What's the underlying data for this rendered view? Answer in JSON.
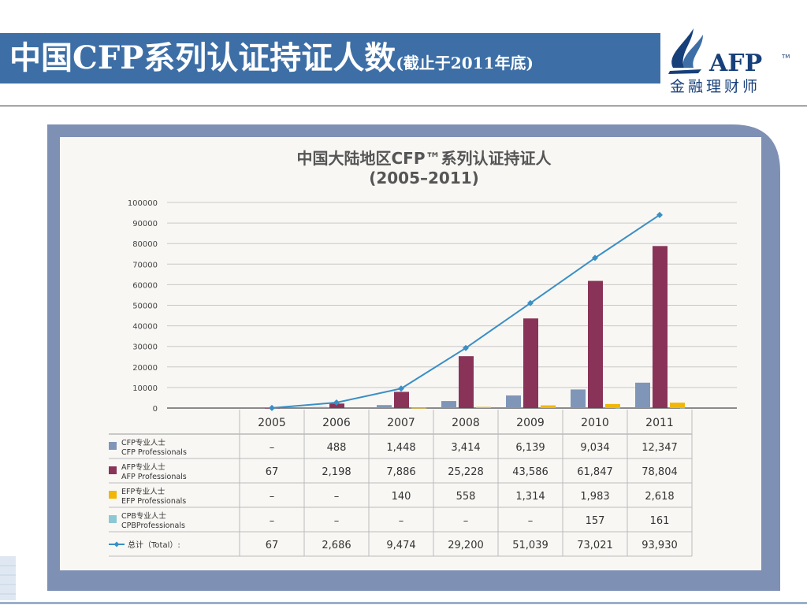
{
  "slide": {
    "title_main": "中国CFP系列认证持证人数",
    "title_sub": "(截止于2011年底)",
    "logo_text": "AFP",
    "logo_tm": "TM",
    "logo_subtitle": "金融理财师"
  },
  "colors": {
    "title_bar": "#3d6fa6",
    "frame": "#7f90b5",
    "cfp": "#8096b8",
    "afp": "#8a3358",
    "efp": "#f2b705",
    "cpb": "#8cc7d4",
    "total": "#3a8fc4"
  },
  "chart_data": {
    "type": "bar",
    "title": "中国大陆地区CFP™系列认证持证人",
    "subtitle": "(2005–2011)",
    "categories": [
      "2005",
      "2006",
      "2007",
      "2008",
      "2009",
      "2010",
      "2011"
    ],
    "ylim": [
      0,
      100000
    ],
    "y_ticks": [
      "100000",
      "90000",
      "80000",
      "70000",
      "60000",
      "50000",
      "40000",
      "30000",
      "20000",
      "10000",
      "0"
    ],
    "grid": true,
    "series": [
      {
        "name_cn": "CFP专业人士",
        "name_en": "CFP Professionals",
        "type": "bar",
        "values": [
          0,
          488,
          1448,
          3414,
          6139,
          9034,
          12347
        ],
        "labels": [
          "–",
          "488",
          "1,448",
          "3,414",
          "6,139",
          "9,034",
          "12,347"
        ]
      },
      {
        "name_cn": "AFP专业人士",
        "name_en": "AFP Professionals",
        "type": "bar",
        "values": [
          67,
          2198,
          7886,
          25228,
          43586,
          61847,
          78804
        ],
        "labels": [
          "67",
          "2,198",
          "7,886",
          "25,228",
          "43,586",
          "61,847",
          "78,804"
        ]
      },
      {
        "name_cn": "EFP专业人士",
        "name_en": "EFP Professionals",
        "type": "bar",
        "values": [
          0,
          0,
          140,
          558,
          1314,
          1983,
          2618
        ],
        "labels": [
          "–",
          "–",
          "140",
          "558",
          "1,314",
          "1,983",
          "2,618"
        ]
      },
      {
        "name_cn": "CPB专业人士",
        "name_en": "CPBProfessionals",
        "type": "bar",
        "values": [
          0,
          0,
          0,
          0,
          0,
          157,
          161
        ],
        "labels": [
          "–",
          "–",
          "–",
          "–",
          "–",
          "157",
          "161"
        ]
      },
      {
        "name_cn": "总计（Total）:",
        "name_en": "",
        "type": "line",
        "values": [
          67,
          2686,
          9474,
          29200,
          51039,
          73021,
          93930
        ],
        "labels": [
          "67",
          "2,686",
          "9,474",
          "29,200",
          "51,039",
          "73,021",
          "93,930"
        ]
      }
    ]
  }
}
